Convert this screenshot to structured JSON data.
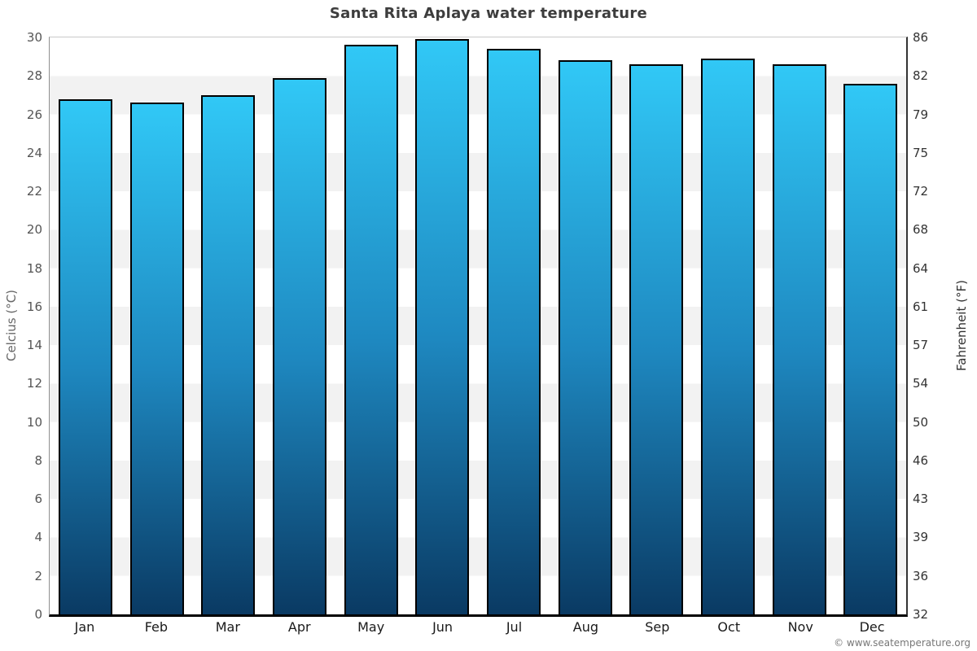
{
  "title": "Santa Rita Aplaya water temperature",
  "footer": {
    "text": "© www.seatemperature.org"
  },
  "chart_data": {
    "type": "bar",
    "title": "Santa Rita Aplaya water temperature",
    "categories": [
      "Jan",
      "Feb",
      "Mar",
      "Apr",
      "May",
      "Jun",
      "Jul",
      "Aug",
      "Sep",
      "Oct",
      "Nov",
      "Dec"
    ],
    "values": [
      26.8,
      26.6,
      27.0,
      27.9,
      29.6,
      29.9,
      29.4,
      28.8,
      28.6,
      28.9,
      28.6,
      27.6
    ],
    "series_unit": "°C",
    "ylabel_left": "Celcius (°C)",
    "ylabel_right": "Fahrenheit (°F)",
    "ylim_left": [
      0,
      30
    ],
    "yticks_left": [
      0,
      2,
      4,
      6,
      8,
      10,
      12,
      14,
      16,
      18,
      20,
      22,
      24,
      26,
      28,
      30
    ],
    "ytick_labels_right": [
      "32",
      "36",
      "39",
      "43",
      "46",
      "50",
      "54",
      "57",
      "61",
      "64",
      "68",
      "72",
      "75",
      "79",
      "82",
      "86"
    ],
    "legend": null,
    "grid": "horizontal-bands-every-2C",
    "colors": {
      "bar_gradient_top": "#31c8f6",
      "bar_gradient_mid": "#1e88c0",
      "bar_gradient_bottom": "#0a3a63",
      "bar_border": "#000000",
      "band_light": "#ffffff",
      "band_gray": "#f2f2f2",
      "title_text": "#3d3d3d",
      "tick_text_left": "#555555",
      "tick_text_right": "#333333",
      "axis_bottom": "#000000"
    }
  }
}
